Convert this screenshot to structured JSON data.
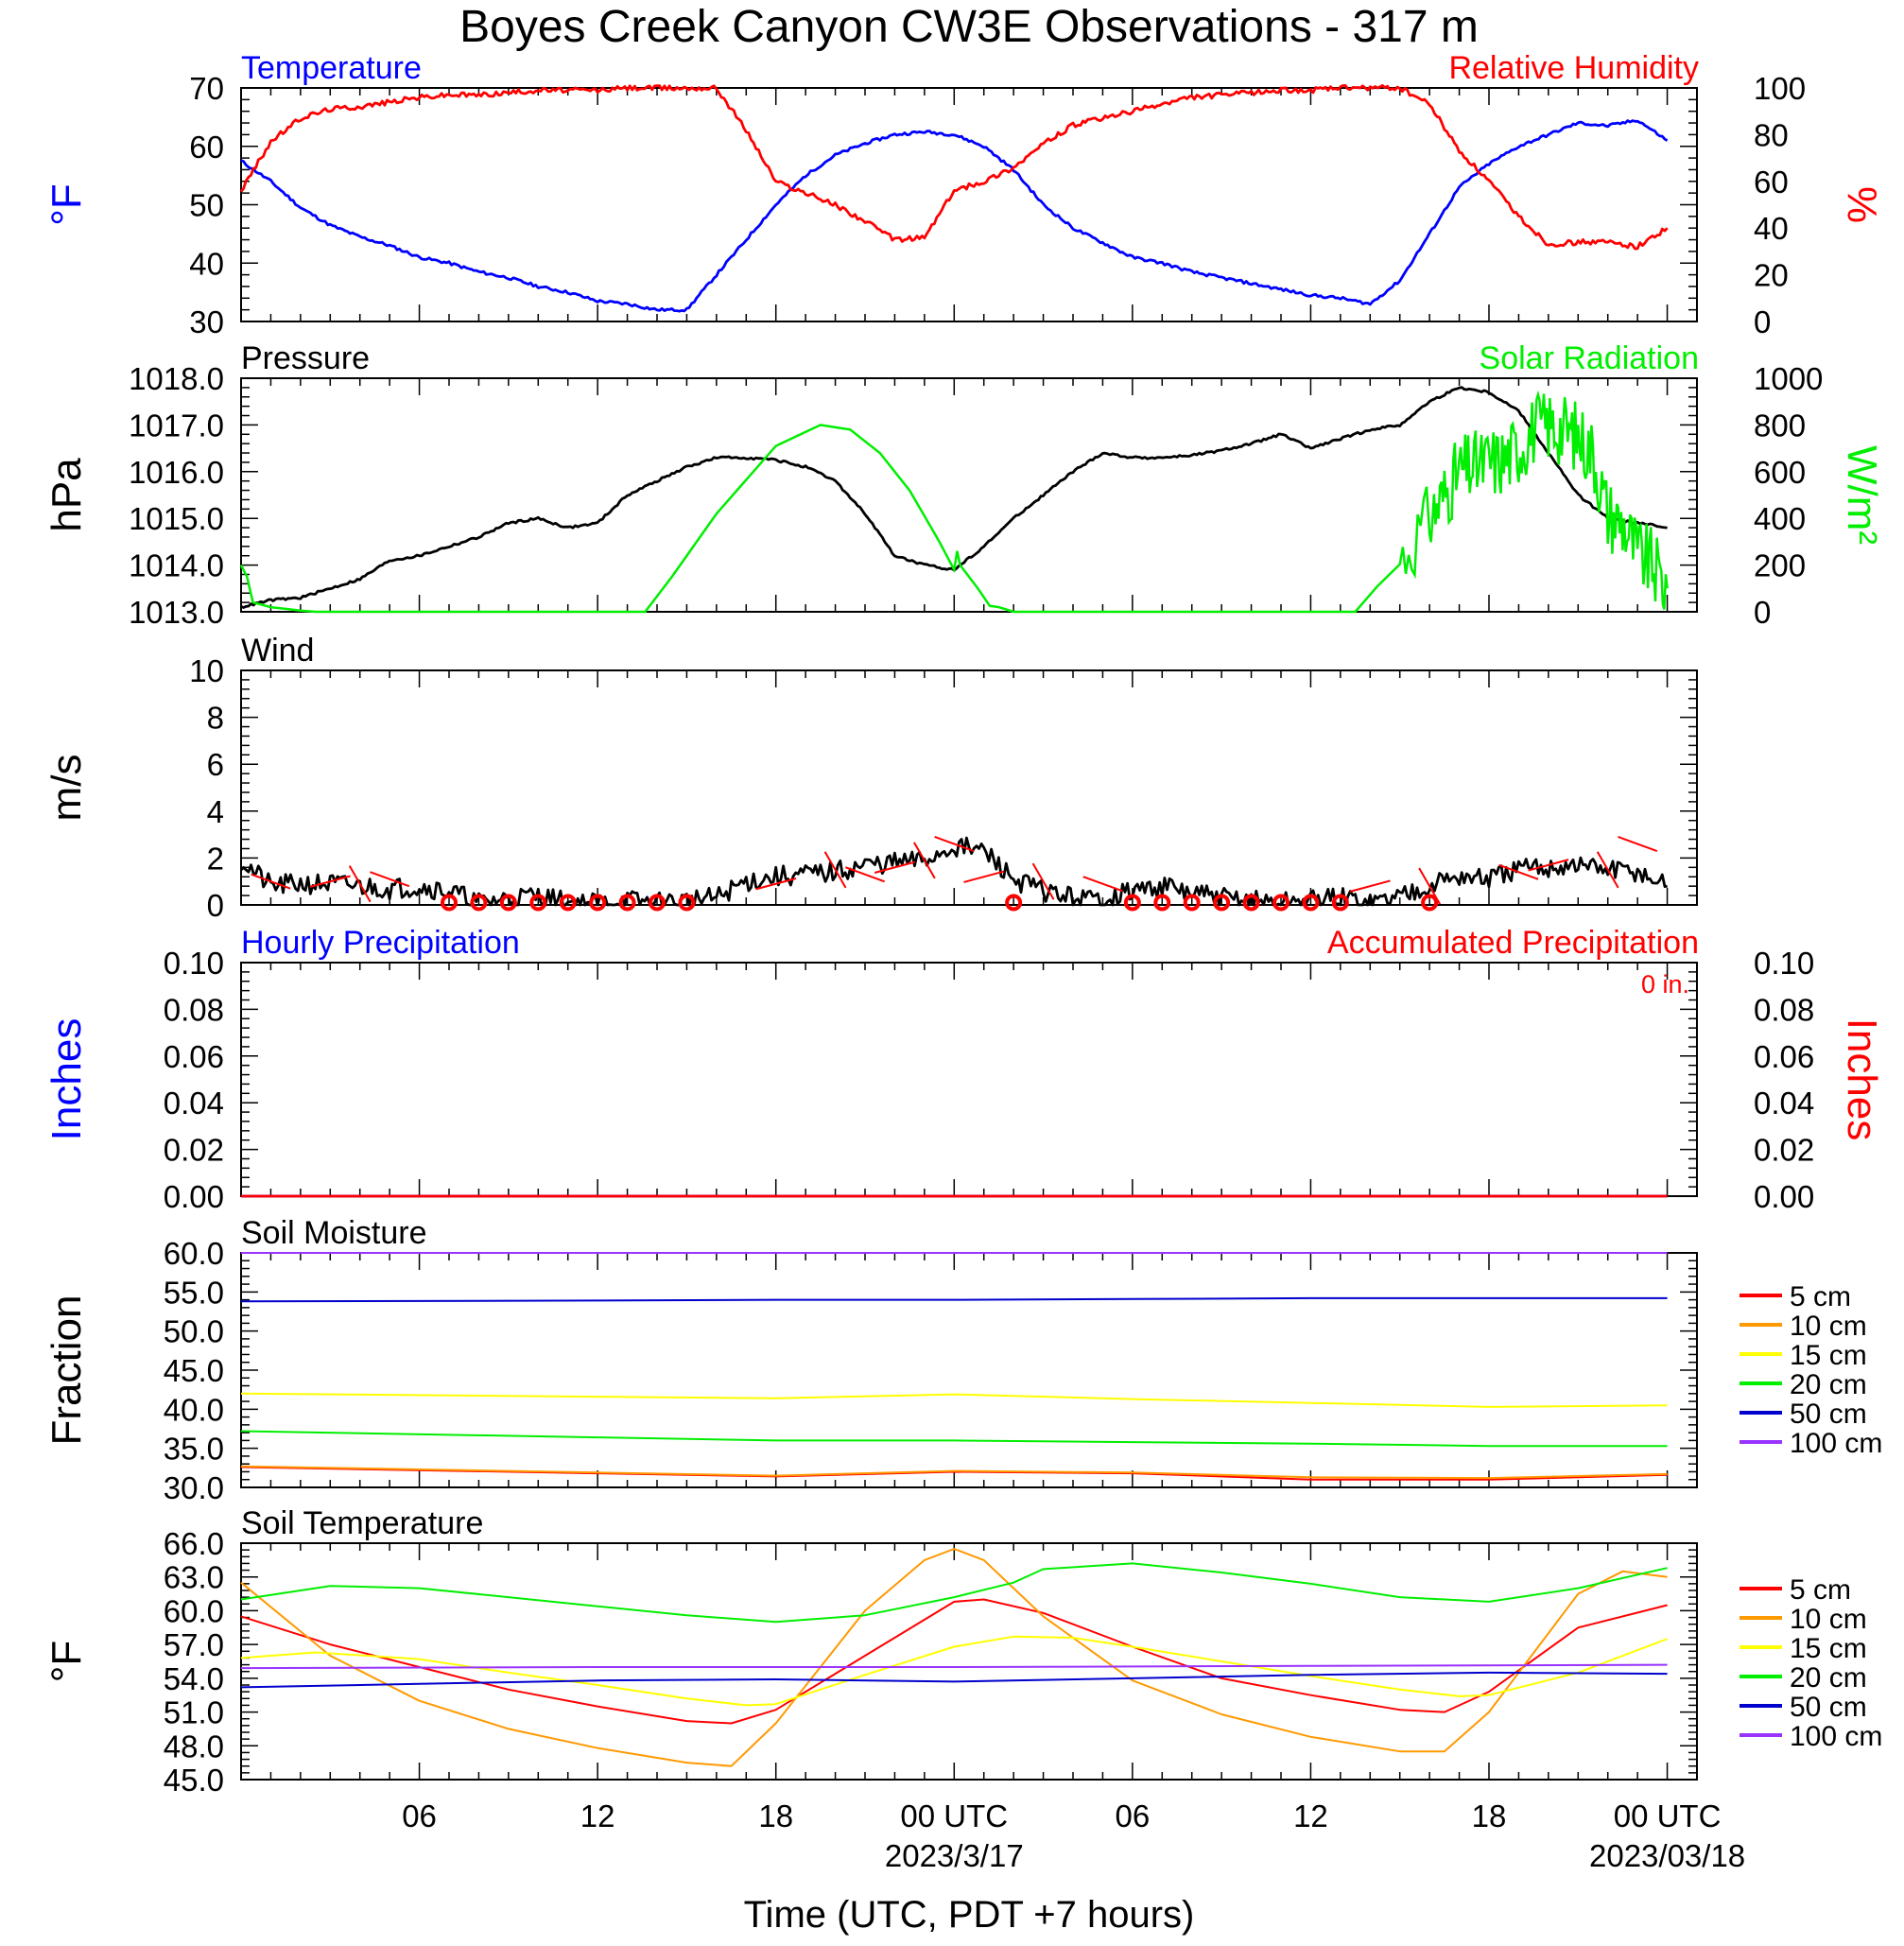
{
  "title": "Boyes Creek Canyon CW3E Observations - 317 m",
  "x_axis": {
    "label": "Time (UTC, PDT +7 hours)",
    "ticks": [
      {
        "hour": 6,
        "label": "06",
        "date": ""
      },
      {
        "hour": 12,
        "label": "12",
        "date": ""
      },
      {
        "hour": 18,
        "label": "18",
        "date": ""
      },
      {
        "hour": 24,
        "label": "00 UTC",
        "date": "2023/3/17"
      },
      {
        "hour": 30,
        "label": "06",
        "date": ""
      },
      {
        "hour": 36,
        "label": "12",
        "date": ""
      },
      {
        "hour": 42,
        "label": "18",
        "date": ""
      },
      {
        "hour": 48,
        "label": "00 UTC",
        "date": "2023/03/18"
      }
    ],
    "range_hours": [
      0,
      49
    ],
    "data_end_hour": 48.0
  },
  "colors": {
    "blue": "#0000ff",
    "red": "#ff0000",
    "green": "#00ee00",
    "black": "#000000",
    "orange": "#ff9900",
    "yellow": "#ffff00",
    "navy": "#0000cc",
    "purple": "#9933ff"
  },
  "chart_data": [
    {
      "type": "line",
      "panel": "temperature-rh",
      "title_left": "Temperature",
      "title_right": "Relative Humidity",
      "ylabel_left": "°F",
      "ylabel_right": "%",
      "ylim_left": [
        30,
        70
      ],
      "yticks_left": [
        "30",
        "40",
        "50",
        "60",
        "70"
      ],
      "ylim_right": [
        0,
        100
      ],
      "yticks_right": [
        "0",
        "20",
        "40",
        "60",
        "80",
        "100"
      ],
      "series": [
        {
          "name": "Temperature",
          "axis": "left",
          "color": "#0000ff",
          "x": [
            0,
            1,
            2,
            3,
            4,
            5,
            6,
            7,
            8,
            9,
            10,
            11,
            12,
            13,
            14,
            15,
            16,
            17,
            18,
            19,
            20,
            21,
            22,
            23,
            24,
            25,
            26,
            27,
            28,
            29,
            30,
            31,
            32,
            33,
            34,
            35,
            36,
            37,
            38,
            39,
            40,
            41,
            42,
            43,
            44,
            45,
            46,
            47,
            48
          ],
          "values": [
            57.5,
            54,
            49.5,
            46.5,
            44.5,
            43,
            41,
            40,
            38.5,
            37.5,
            36,
            35,
            33.5,
            33,
            32,
            32,
            38,
            44,
            50,
            55,
            58.5,
            60.5,
            62,
            62.5,
            62,
            60,
            56,
            50,
            46,
            43.5,
            41,
            40,
            38.5,
            37.5,
            36.5,
            35.5,
            34.5,
            34,
            33,
            37,
            45,
            53,
            57,
            60,
            62,
            64,
            63.5,
            64.5,
            61
          ]
        },
        {
          "name": "Relative Humidity",
          "axis": "right",
          "color": "#ff0000",
          "x": [
            0,
            1,
            2,
            3,
            4,
            5,
            6,
            7,
            8,
            9,
            10,
            11,
            12,
            13,
            14,
            15,
            16,
            17,
            18,
            19,
            20,
            21,
            22,
            23,
            24,
            25,
            26,
            27,
            28,
            29,
            30,
            31,
            32,
            33,
            34,
            35,
            36,
            37,
            38,
            39,
            40,
            41,
            42,
            43,
            44,
            45,
            46,
            47,
            48
          ],
          "values": [
            56,
            77,
            87,
            91,
            92,
            94,
            96,
            97,
            97,
            98,
            99,
            99,
            99,
            100,
            100,
            100,
            100,
            82,
            60,
            55,
            50,
            43,
            35,
            36,
            56,
            60,
            66,
            76,
            84,
            87,
            90,
            93,
            96,
            97,
            98,
            99,
            99,
            100,
            100,
            100,
            93,
            73,
            60,
            45,
            33,
            34,
            34,
            32,
            40
          ]
        }
      ]
    },
    {
      "type": "line",
      "panel": "pressure-solar",
      "title_left": "Pressure",
      "title_right": "Solar Radiation",
      "ylabel_left": "hPa",
      "ylabel_right": "W/m²",
      "ylim_left": [
        1013.0,
        1018.0
      ],
      "yticks_left": [
        "1013.0",
        "1014.0",
        "1015.0",
        "1016.0",
        "1017.0",
        "1018.0"
      ],
      "ylim_right": [
        0,
        1000
      ],
      "yticks_right": [
        "0",
        "200",
        "400",
        "600",
        "800",
        "1000"
      ],
      "series": [
        {
          "name": "Pressure",
          "axis": "left",
          "color": "#000000",
          "x": [
            0,
            1,
            2,
            3,
            4,
            5,
            6,
            7,
            8,
            9,
            10,
            11,
            12,
            13,
            14,
            15,
            16,
            17,
            18,
            19,
            20,
            21,
            22,
            23,
            24,
            25,
            26,
            27,
            28,
            29,
            30,
            31,
            32,
            33,
            34,
            35,
            36,
            37,
            38,
            39,
            40,
            41,
            42,
            43,
            44,
            45,
            46,
            47,
            48
          ],
          "values": [
            1013.1,
            1013.25,
            1013.3,
            1013.5,
            1013.7,
            1014.1,
            1014.2,
            1014.4,
            1014.6,
            1014.9,
            1015.0,
            1014.8,
            1014.9,
            1015.5,
            1015.8,
            1016.1,
            1016.3,
            1016.3,
            1016.25,
            1016.1,
            1015.8,
            1015.1,
            1014.2,
            1014.0,
            1013.9,
            1014.4,
            1015.0,
            1015.5,
            1016.0,
            1016.4,
            1016.3,
            1016.3,
            1016.35,
            1016.45,
            1016.6,
            1016.8,
            1016.5,
            1016.7,
            1016.9,
            1017.0,
            1017.5,
            1017.8,
            1017.7,
            1017.3,
            1016.4,
            1015.5,
            1015.0,
            1014.9,
            1014.8
          ]
        },
        {
          "name": "Solar Radiation",
          "axis": "right",
          "color": "#00ee00",
          "x": [
            0,
            0.2,
            0.4,
            1,
            2,
            2.5,
            13.6,
            14.5,
            16,
            18,
            19.5,
            20.5,
            21.5,
            22.5,
            23.5,
            24,
            24.1,
            24.2,
            24.8,
            25.2,
            25.5,
            26,
            27,
            37.5,
            39,
            40,
            40.5,
            41,
            41.5,
            42,
            42.5,
            43,
            43.5,
            44,
            44.5,
            45,
            45.5,
            46,
            46.5,
            47,
            47.5,
            48
          ],
          "values": [
            200,
            150,
            40,
            20,
            5,
            0,
            0,
            150,
            420,
            710,
            800,
            780,
            680,
            520,
            300,
            180,
            260,
            200,
            100,
            25,
            20,
            0,
            0,
            0,
            220,
            400,
            500,
            600,
            620,
            640,
            650,
            700,
            780,
            800,
            780,
            750,
            680,
            420,
            380,
            250,
            200,
            100
          ]
        }
      ]
    },
    {
      "type": "line",
      "panel": "wind",
      "title_left": "Wind",
      "ylabel_left": "m/s",
      "ylim_left": [
        0,
        10
      ],
      "yticks_left": [
        "0",
        "2",
        "4",
        "6",
        "8",
        "10"
      ],
      "series": [
        {
          "name": "Wind",
          "axis": "left",
          "color": "#000000",
          "x": [
            0,
            1,
            2,
            3,
            4,
            5,
            6,
            7,
            8,
            9,
            10,
            11,
            12,
            13,
            14,
            15,
            16,
            17,
            18,
            19,
            20,
            21,
            22,
            23,
            24,
            25,
            26,
            27,
            28,
            29,
            30,
            31,
            32,
            33,
            34,
            35,
            36,
            37,
            38,
            39,
            40,
            41,
            42,
            43,
            44,
            45,
            46,
            47,
            48
          ],
          "values": [
            1.9,
            0.8,
            0.9,
            0.9,
            0.8,
            0.7,
            0.8,
            0.6,
            0.1,
            0.3,
            0.4,
            0.1,
            0.1,
            0.2,
            0.1,
            0.2,
            0.3,
            1.0,
            1.2,
            1.3,
            1.4,
            1.7,
            1.8,
            1.9,
            2.5,
            2.3,
            1.1,
            0.6,
            0.3,
            0.2,
            0.6,
            0.8,
            0.5,
            0.3,
            0.2,
            0.1,
            0.2,
            0.3,
            0.1,
            0.4,
            0.9,
            1.2,
            1.1,
            1.5,
            1.6,
            1.7,
            1.5,
            1.4,
            0.8
          ]
        }
      ],
      "calm_hours": [
        7,
        8,
        9,
        10,
        11,
        12,
        13,
        14,
        15,
        26,
        30,
        31,
        32,
        33,
        34,
        35,
        36,
        37,
        40
      ]
    },
    {
      "type": "line",
      "panel": "precipitation",
      "title_left": "Hourly Precipitation",
      "title_right": "Accumulated Precipitation",
      "annotation": "0 in.",
      "ylabel_left": "Inches",
      "ylabel_right": "Inches",
      "ylim_left": [
        0,
        0.1
      ],
      "yticks_left": [
        "0.00",
        "0.02",
        "0.04",
        "0.06",
        "0.08",
        "0.10"
      ],
      "ylim_right": [
        0,
        0.1
      ],
      "yticks_right": [
        "0.00",
        "0.02",
        "0.04",
        "0.06",
        "0.08",
        "0.10"
      ],
      "series": [
        {
          "name": "Hourly Precipitation",
          "axis": "left",
          "color": "#0000ff",
          "x": [
            0,
            48
          ],
          "values": [
            0,
            0
          ]
        },
        {
          "name": "Accumulated Precipitation",
          "axis": "right",
          "color": "#ff0000",
          "x": [
            0,
            48
          ],
          "values": [
            0,
            0
          ]
        }
      ]
    },
    {
      "type": "line",
      "panel": "soil-moisture",
      "title_left": "Soil Moisture",
      "ylabel_left": "Fraction",
      "ylim_left": [
        30.0,
        60.0
      ],
      "yticks_left": [
        "30.0",
        "35.0",
        "40.0",
        "45.0",
        "50.0",
        "55.0",
        "60.0"
      ],
      "legend_placement": "right",
      "series": [
        {
          "name": "5 cm",
          "color": "#ff0000",
          "x": [
            0,
            12,
            18,
            24,
            30,
            36,
            42,
            48
          ],
          "values": [
            32.6,
            31.8,
            31.4,
            32.0,
            31.8,
            31.0,
            31.0,
            31.6
          ]
        },
        {
          "name": "10 cm",
          "color": "#ff9900",
          "x": [
            0,
            12,
            18,
            24,
            30,
            36,
            42,
            48
          ],
          "values": [
            32.7,
            31.9,
            31.5,
            32.1,
            31.9,
            31.3,
            31.2,
            31.7
          ]
        },
        {
          "name": "15 cm",
          "color": "#ffff00",
          "x": [
            0,
            12,
            18,
            24,
            30,
            36,
            42,
            48
          ],
          "values": [
            42.0,
            41.6,
            41.4,
            41.9,
            41.3,
            40.8,
            40.3,
            40.5
          ]
        },
        {
          "name": "20 cm",
          "color": "#00ee00",
          "x": [
            0,
            12,
            18,
            24,
            30,
            36,
            42,
            48
          ],
          "values": [
            37.2,
            36.4,
            36.0,
            36.0,
            35.8,
            35.6,
            35.3,
            35.3
          ]
        },
        {
          "name": "50 cm",
          "color": "#0000cc",
          "x": [
            0,
            12,
            18,
            24,
            30,
            36,
            42,
            48
          ],
          "values": [
            53.8,
            53.9,
            54.0,
            54.0,
            54.1,
            54.2,
            54.2,
            54.2
          ]
        },
        {
          "name": "100 cm",
          "color": "#9933ff",
          "x": [
            0,
            12,
            24,
            36,
            48
          ],
          "values": [
            60.0,
            60.0,
            60.0,
            60.0,
            60.0
          ]
        }
      ]
    },
    {
      "type": "line",
      "panel": "soil-temperature",
      "title_left": "Soil Temperature",
      "ylabel_left": "°F",
      "ylim_left": [
        45.0,
        66.0
      ],
      "yticks_left": [
        "45.0",
        "48.0",
        "51.0",
        "54.0",
        "57.0",
        "60.0",
        "63.0",
        "66.0"
      ],
      "legend_placement": "right",
      "series": [
        {
          "name": "5 cm",
          "color": "#ff0000",
          "x": [
            0,
            3,
            6,
            9,
            12,
            15,
            16.5,
            18,
            21,
            24,
            25,
            27,
            30,
            33,
            36,
            39,
            40.5,
            42,
            45,
            48
          ],
          "values": [
            59.5,
            57,
            55,
            53,
            51.5,
            50.2,
            50,
            51.2,
            56,
            60.8,
            61,
            59.8,
            56.8,
            54,
            52.5,
            51.2,
            51,
            52.8,
            58.5,
            60.5
          ]
        },
        {
          "name": "10 cm",
          "color": "#ff9900",
          "x": [
            0,
            3,
            6,
            9,
            12,
            15,
            16.5,
            18,
            21,
            23,
            24,
            25,
            27,
            30,
            33,
            36,
            39,
            40.5,
            42,
            45,
            46.5,
            48
          ],
          "values": [
            62.5,
            56,
            52,
            49.5,
            47.8,
            46.5,
            46.2,
            50,
            60,
            64.5,
            65.5,
            64.5,
            59.5,
            53.8,
            50.8,
            48.8,
            47.5,
            47.5,
            51,
            61.5,
            63.5,
            63
          ]
        },
        {
          "name": "15 cm",
          "color": "#ffff00",
          "x": [
            0,
            2.5,
            6,
            9,
            12,
            15,
            17,
            18,
            21,
            24,
            26,
            28,
            30,
            33,
            36,
            39,
            41,
            42,
            45,
            48
          ],
          "values": [
            55.8,
            56.3,
            55.7,
            54.5,
            53.4,
            52.2,
            51.6,
            51.7,
            54.3,
            56.8,
            57.7,
            57.6,
            56.8,
            55.5,
            54.2,
            53.0,
            52.4,
            52.5,
            54.5,
            57.5
          ]
        },
        {
          "name": "20 cm",
          "color": "#00ee00",
          "x": [
            0,
            3,
            6,
            9,
            12,
            15,
            18,
            21,
            24,
            26,
            27,
            30,
            33,
            36,
            39,
            42,
            45,
            48
          ],
          "values": [
            61,
            62.2,
            62,
            61.2,
            60.4,
            59.6,
            59,
            59.6,
            61.2,
            62.5,
            63.7,
            64.2,
            63.4,
            62.4,
            61.2,
            60.8,
            62,
            63.8
          ]
        },
        {
          "name": "50 cm",
          "color": "#0000cc",
          "x": [
            0,
            6,
            12,
            18,
            24,
            30,
            36,
            42,
            48
          ],
          "values": [
            53.2,
            53.5,
            53.8,
            53.9,
            53.7,
            54.0,
            54.3,
            54.5,
            54.4
          ]
        },
        {
          "name": "100 cm",
          "color": "#9933ff",
          "x": [
            0,
            12,
            24,
            36,
            48
          ],
          "values": [
            54.9,
            55.0,
            55.0,
            55.1,
            55.2
          ]
        }
      ]
    }
  ]
}
